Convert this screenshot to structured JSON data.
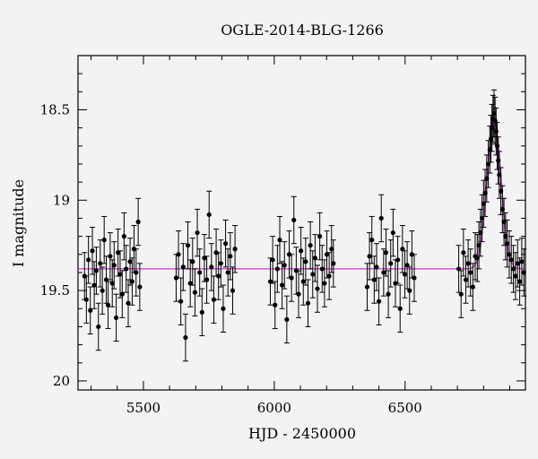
{
  "chart_data": {
    "type": "scatter",
    "title": "OGLE-2014-BLG-1266",
    "xlabel": "HJD - 2450000",
    "ylabel": "I magnitude",
    "xlim": [
      5250,
      6960
    ],
    "ylim": [
      20.05,
      18.2
    ],
    "y_inverted": true,
    "xticks": [
      5500,
      6000,
      6500
    ],
    "yticks": [
      18.5,
      19,
      19.5,
      20
    ],
    "ytick_labels": [
      "18.5",
      "19",
      "19.5",
      "20"
    ],
    "grid": false,
    "colors": {
      "points": "#000000",
      "model": "#cc33cc"
    },
    "baseline_mag": 19.38,
    "peak": {
      "x": 6840,
      "mag": 18.55,
      "width_days": 38
    },
    "error_bar_mag": 0.13,
    "observing_seasons": [
      {
        "start": 5270,
        "end": 5490
      },
      {
        "start": 5620,
        "end": 5860
      },
      {
        "start": 5980,
        "end": 6230
      },
      {
        "start": 6350,
        "end": 6540
      },
      {
        "start": 6700,
        "end": 6960
      }
    ],
    "points": [
      [
        5275,
        19.42
      ],
      [
        5282,
        19.55
      ],
      [
        5290,
        19.33
      ],
      [
        5297,
        19.61
      ],
      [
        5305,
        19.28
      ],
      [
        5312,
        19.47
      ],
      [
        5320,
        19.39
      ],
      [
        5328,
        19.7
      ],
      [
        5335,
        19.35
      ],
      [
        5343,
        19.5
      ],
      [
        5350,
        19.22
      ],
      [
        5358,
        19.44
      ],
      [
        5365,
        19.58
      ],
      [
        5373,
        19.31
      ],
      [
        5381,
        19.46
      ],
      [
        5388,
        19.36
      ],
      [
        5396,
        19.65
      ],
      [
        5403,
        19.29
      ],
      [
        5411,
        19.41
      ],
      [
        5419,
        19.52
      ],
      [
        5426,
        19.2
      ],
      [
        5434,
        19.38
      ],
      [
        5442,
        19.57
      ],
      [
        5449,
        19.34
      ],
      [
        5457,
        19.45
      ],
      [
        5464,
        19.27
      ],
      [
        5472,
        19.4
      ],
      [
        5480,
        19.12
      ],
      [
        5486,
        19.48
      ],
      [
        5625,
        19.43
      ],
      [
        5634,
        19.3
      ],
      [
        5643,
        19.56
      ],
      [
        5652,
        19.37
      ],
      [
        5661,
        19.76
      ],
      [
        5670,
        19.25
      ],
      [
        5679,
        19.46
      ],
      [
        5688,
        19.34
      ],
      [
        5697,
        19.51
      ],
      [
        5706,
        19.18
      ],
      [
        5715,
        19.4
      ],
      [
        5724,
        19.62
      ],
      [
        5733,
        19.32
      ],
      [
        5742,
        19.44
      ],
      [
        5751,
        19.08
      ],
      [
        5760,
        19.37
      ],
      [
        5769,
        19.55
      ],
      [
        5778,
        19.29
      ],
      [
        5787,
        19.42
      ],
      [
        5796,
        19.35
      ],
      [
        5805,
        19.6
      ],
      [
        5814,
        19.24
      ],
      [
        5823,
        19.4
      ],
      [
        5832,
        19.31
      ],
      [
        5841,
        19.5
      ],
      [
        5850,
        19.27
      ],
      [
        5985,
        19.45
      ],
      [
        5994,
        19.33
      ],
      [
        6003,
        19.58
      ],
      [
        6012,
        19.38
      ],
      [
        6021,
        19.22
      ],
      [
        6030,
        19.47
      ],
      [
        6039,
        19.36
      ],
      [
        6048,
        19.66
      ],
      [
        6057,
        19.3
      ],
      [
        6066,
        19.43
      ],
      [
        6075,
        19.11
      ],
      [
        6084,
        19.39
      ],
      [
        6093,
        19.52
      ],
      [
        6102,
        19.28
      ],
      [
        6111,
        19.45
      ],
      [
        6120,
        19.34
      ],
      [
        6129,
        19.57
      ],
      [
        6138,
        19.25
      ],
      [
        6147,
        19.41
      ],
      [
        6156,
        19.32
      ],
      [
        6165,
        19.49
      ],
      [
        6174,
        19.2
      ],
      [
        6183,
        19.38
      ],
      [
        6192,
        19.46
      ],
      [
        6201,
        19.3
      ],
      [
        6210,
        19.42
      ],
      [
        6219,
        19.27
      ],
      [
        6226,
        19.35
      ],
      [
        6355,
        19.48
      ],
      [
        6364,
        19.31
      ],
      [
        6373,
        19.22
      ],
      [
        6382,
        19.44
      ],
      [
        6391,
        19.37
      ],
      [
        6400,
        19.56
      ],
      [
        6409,
        19.1
      ],
      [
        6418,
        19.4
      ],
      [
        6427,
        19.29
      ],
      [
        6436,
        19.52
      ],
      [
        6445,
        19.35
      ],
      [
        6454,
        19.18
      ],
      [
        6463,
        19.46
      ],
      [
        6472,
        19.33
      ],
      [
        6481,
        19.6
      ],
      [
        6490,
        19.27
      ],
      [
        6499,
        19.41
      ],
      [
        6508,
        19.36
      ],
      [
        6517,
        19.5
      ],
      [
        6526,
        19.3
      ],
      [
        6535,
        19.43
      ],
      [
        6705,
        19.38
      ],
      [
        6714,
        19.52
      ],
      [
        6723,
        19.29
      ],
      [
        6732,
        19.44
      ],
      [
        6741,
        19.35
      ],
      [
        6750,
        19.4
      ],
      [
        6759,
        19.48
      ],
      [
        6768,
        19.31
      ],
      [
        6776,
        19.32
      ],
      [
        6782,
        19.25
      ],
      [
        6788,
        19.18
      ],
      [
        6794,
        19.1
      ],
      [
        6800,
        19.02
      ],
      [
        6806,
        18.96
      ],
      [
        6812,
        18.88
      ],
      [
        6818,
        18.8
      ],
      [
        6824,
        18.72
      ],
      [
        6828,
        18.66
      ],
      [
        6832,
        18.6
      ],
      [
        6836,
        18.55
      ],
      [
        6840,
        18.52
      ],
      [
        6844,
        18.56
      ],
      [
        6848,
        18.62
      ],
      [
        6852,
        18.7
      ],
      [
        6856,
        18.78
      ],
      [
        6860,
        18.86
      ],
      [
        6866,
        18.95
      ],
      [
        6872,
        19.05
      ],
      [
        6878,
        19.12
      ],
      [
        6884,
        19.2
      ],
      [
        6890,
        19.24
      ],
      [
        6898,
        19.3
      ],
      [
        6906,
        19.33
      ],
      [
        6914,
        19.38
      ],
      [
        6922,
        19.42
      ],
      [
        6930,
        19.35
      ],
      [
        6938,
        19.45
      ],
      [
        6946,
        19.34
      ],
      [
        6954,
        19.4
      ]
    ]
  }
}
